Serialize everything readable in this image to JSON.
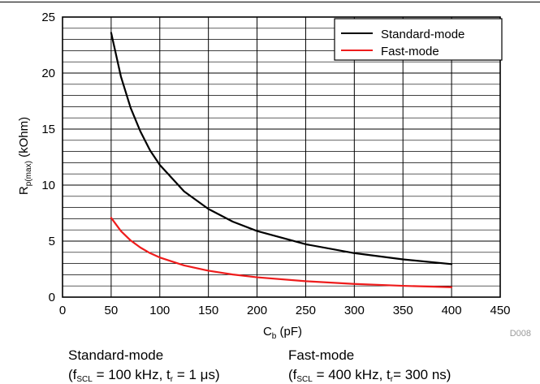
{
  "chart_data": {
    "type": "line",
    "xlabel": "C",
    "xlabel_sub": "b",
    "xlabel_unit": " (pF)",
    "ylabel": "R",
    "ylabel_sub": "p(max)",
    "ylabel_unit": " (kOhm)",
    "xlim": [
      0,
      450
    ],
    "ylim": [
      0,
      25
    ],
    "x_ticks": [
      0,
      50,
      100,
      150,
      200,
      250,
      300,
      350,
      400,
      450
    ],
    "y_ticks": [
      0,
      5,
      10,
      15,
      20,
      25
    ],
    "x_minor_step": 50,
    "y_minor_step": 1,
    "grid": true,
    "legend_position": "top-right",
    "series": [
      {
        "name": "Standard-mode",
        "color": "#000000",
        "x": [
          50,
          60,
          70,
          80,
          90,
          100,
          125,
          150,
          175,
          200,
          250,
          300,
          350,
          400
        ],
        "y": [
          23.6,
          19.7,
          16.9,
          14.8,
          13.1,
          11.8,
          9.44,
          7.87,
          6.74,
          5.9,
          4.72,
          3.93,
          3.37,
          2.95
        ]
      },
      {
        "name": "Fast-mode",
        "color": "#ee1c1c",
        "x": [
          50,
          60,
          70,
          80,
          90,
          100,
          125,
          150,
          175,
          200,
          250,
          300,
          350,
          400
        ],
        "y": [
          7.08,
          5.9,
          5.06,
          4.43,
          3.93,
          3.54,
          2.83,
          2.36,
          2.02,
          1.77,
          1.42,
          1.18,
          1.01,
          0.89
        ]
      }
    ],
    "figure_id": "D008"
  },
  "captions": {
    "left_title": "Standard-mode",
    "left_cond_a": "(f",
    "left_cond_a_sub": "SCL",
    "left_cond_b": " = 100 kHz, t",
    "left_cond_b_sub": "r",
    "left_cond_c": " = 1 μs)",
    "right_title": "Fast-mode",
    "right_cond_a": "(f",
    "right_cond_a_sub": "SCL",
    "right_cond_b": " = 400 kHz, t",
    "right_cond_b_sub": "r",
    "right_cond_c": "= 300 ns)"
  }
}
